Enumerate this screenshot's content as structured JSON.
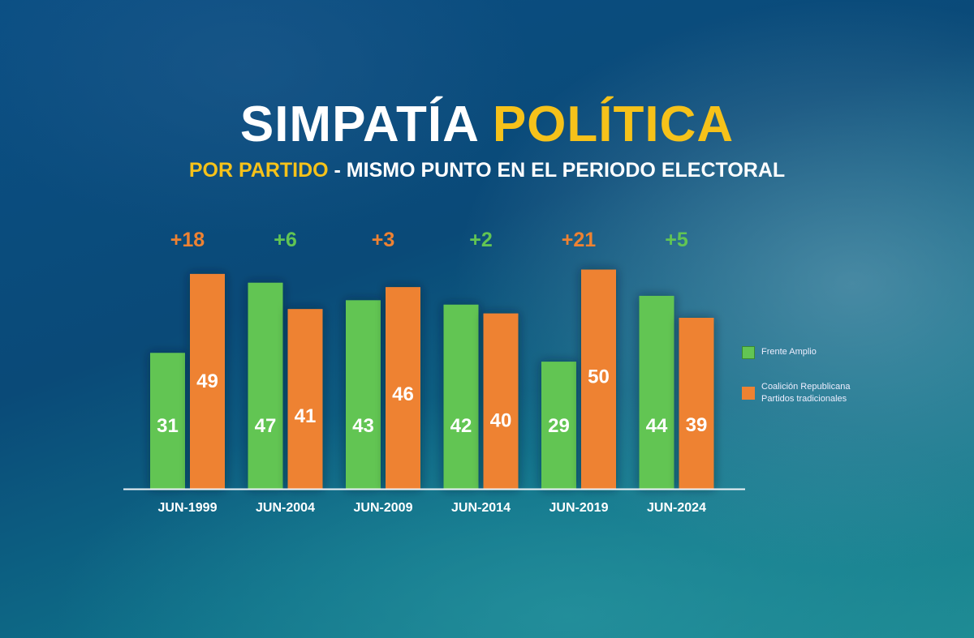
{
  "header": {
    "title_white": "SIMPATÍA",
    "title_yellow": "POLÍTICA",
    "subtitle_yellow": "POR PARTIDO",
    "subtitle_white": " - MISMO PUNTO EN EL PERIODO ELECTORAL"
  },
  "colors": {
    "frente_amplio": "#62c553",
    "coalicion": "#ee8232",
    "accent": "#f6c21a"
  },
  "chart_data": {
    "type": "bar",
    "title": "SIMPATÍA POLÍTICA",
    "subtitle": "POR PARTIDO - MISMO PUNTO EN EL PERIODO ELECTORAL",
    "categories": [
      "JUN-1999",
      "JUN-2004",
      "JUN-2009",
      "JUN-2014",
      "JUN-2019",
      "JUN-2024"
    ],
    "series": [
      {
        "name": "Frente Amplio",
        "values": [
          31,
          47,
          43,
          42,
          29,
          44
        ]
      },
      {
        "name": "Coalición Republicana Partidos tradicionales",
        "values": [
          49,
          41,
          46,
          40,
          50,
          39
        ]
      }
    ],
    "differences": [
      {
        "label": "+18",
        "leader": "Coalición Republicana Partidos tradicionales"
      },
      {
        "label": "+6",
        "leader": "Frente Amplio"
      },
      {
        "label": "+3",
        "leader": "Coalición Republicana Partidos tradicionales"
      },
      {
        "label": "+2",
        "leader": "Frente Amplio"
      },
      {
        "label": "+21",
        "leader": "Coalición Republicana Partidos tradicionales"
      },
      {
        "label": "+5",
        "leader": "Frente Amplio"
      }
    ],
    "xlabel": "",
    "ylabel": "",
    "ylim": [
      0,
      50
    ],
    "grid": false,
    "legend": {
      "position": "right",
      "entries": [
        "Frente Amplio",
        "Coalición Republicana\nPartidos tradicionales"
      ]
    }
  },
  "legend": {
    "items": [
      {
        "label_lines": [
          "Frente Amplio"
        ]
      },
      {
        "label_lines": [
          "Coalición Republicana",
          "Partidos tradicionales"
        ]
      }
    ]
  }
}
